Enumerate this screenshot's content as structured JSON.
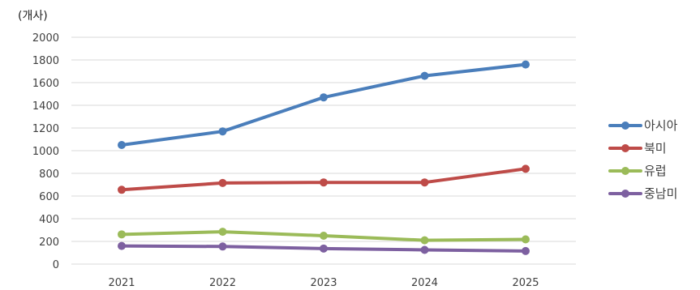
{
  "chart_data": {
    "type": "line",
    "unit_label": "(개사)",
    "categories": [
      "2021",
      "2022",
      "2023",
      "2024",
      "2025"
    ],
    "ylim": [
      0,
      2000
    ],
    "yticks": [
      0,
      200,
      400,
      600,
      800,
      1000,
      1200,
      1400,
      1600,
      1800,
      2000
    ],
    "grid": true,
    "legend_position": "right",
    "series": [
      {
        "name": "아시아",
        "color": "#4a7ebb",
        "values": [
          1050,
          1170,
          1470,
          1660,
          1760
        ]
      },
      {
        "name": "북미",
        "color": "#be4b48",
        "values": [
          655,
          715,
          720,
          720,
          840
        ]
      },
      {
        "name": "유럽",
        "color": "#9bbb59",
        "values": [
          262,
          285,
          250,
          210,
          218
        ]
      },
      {
        "name": "중남미",
        "color": "#7d60a0",
        "values": [
          160,
          155,
          137,
          125,
          115
        ]
      }
    ]
  }
}
